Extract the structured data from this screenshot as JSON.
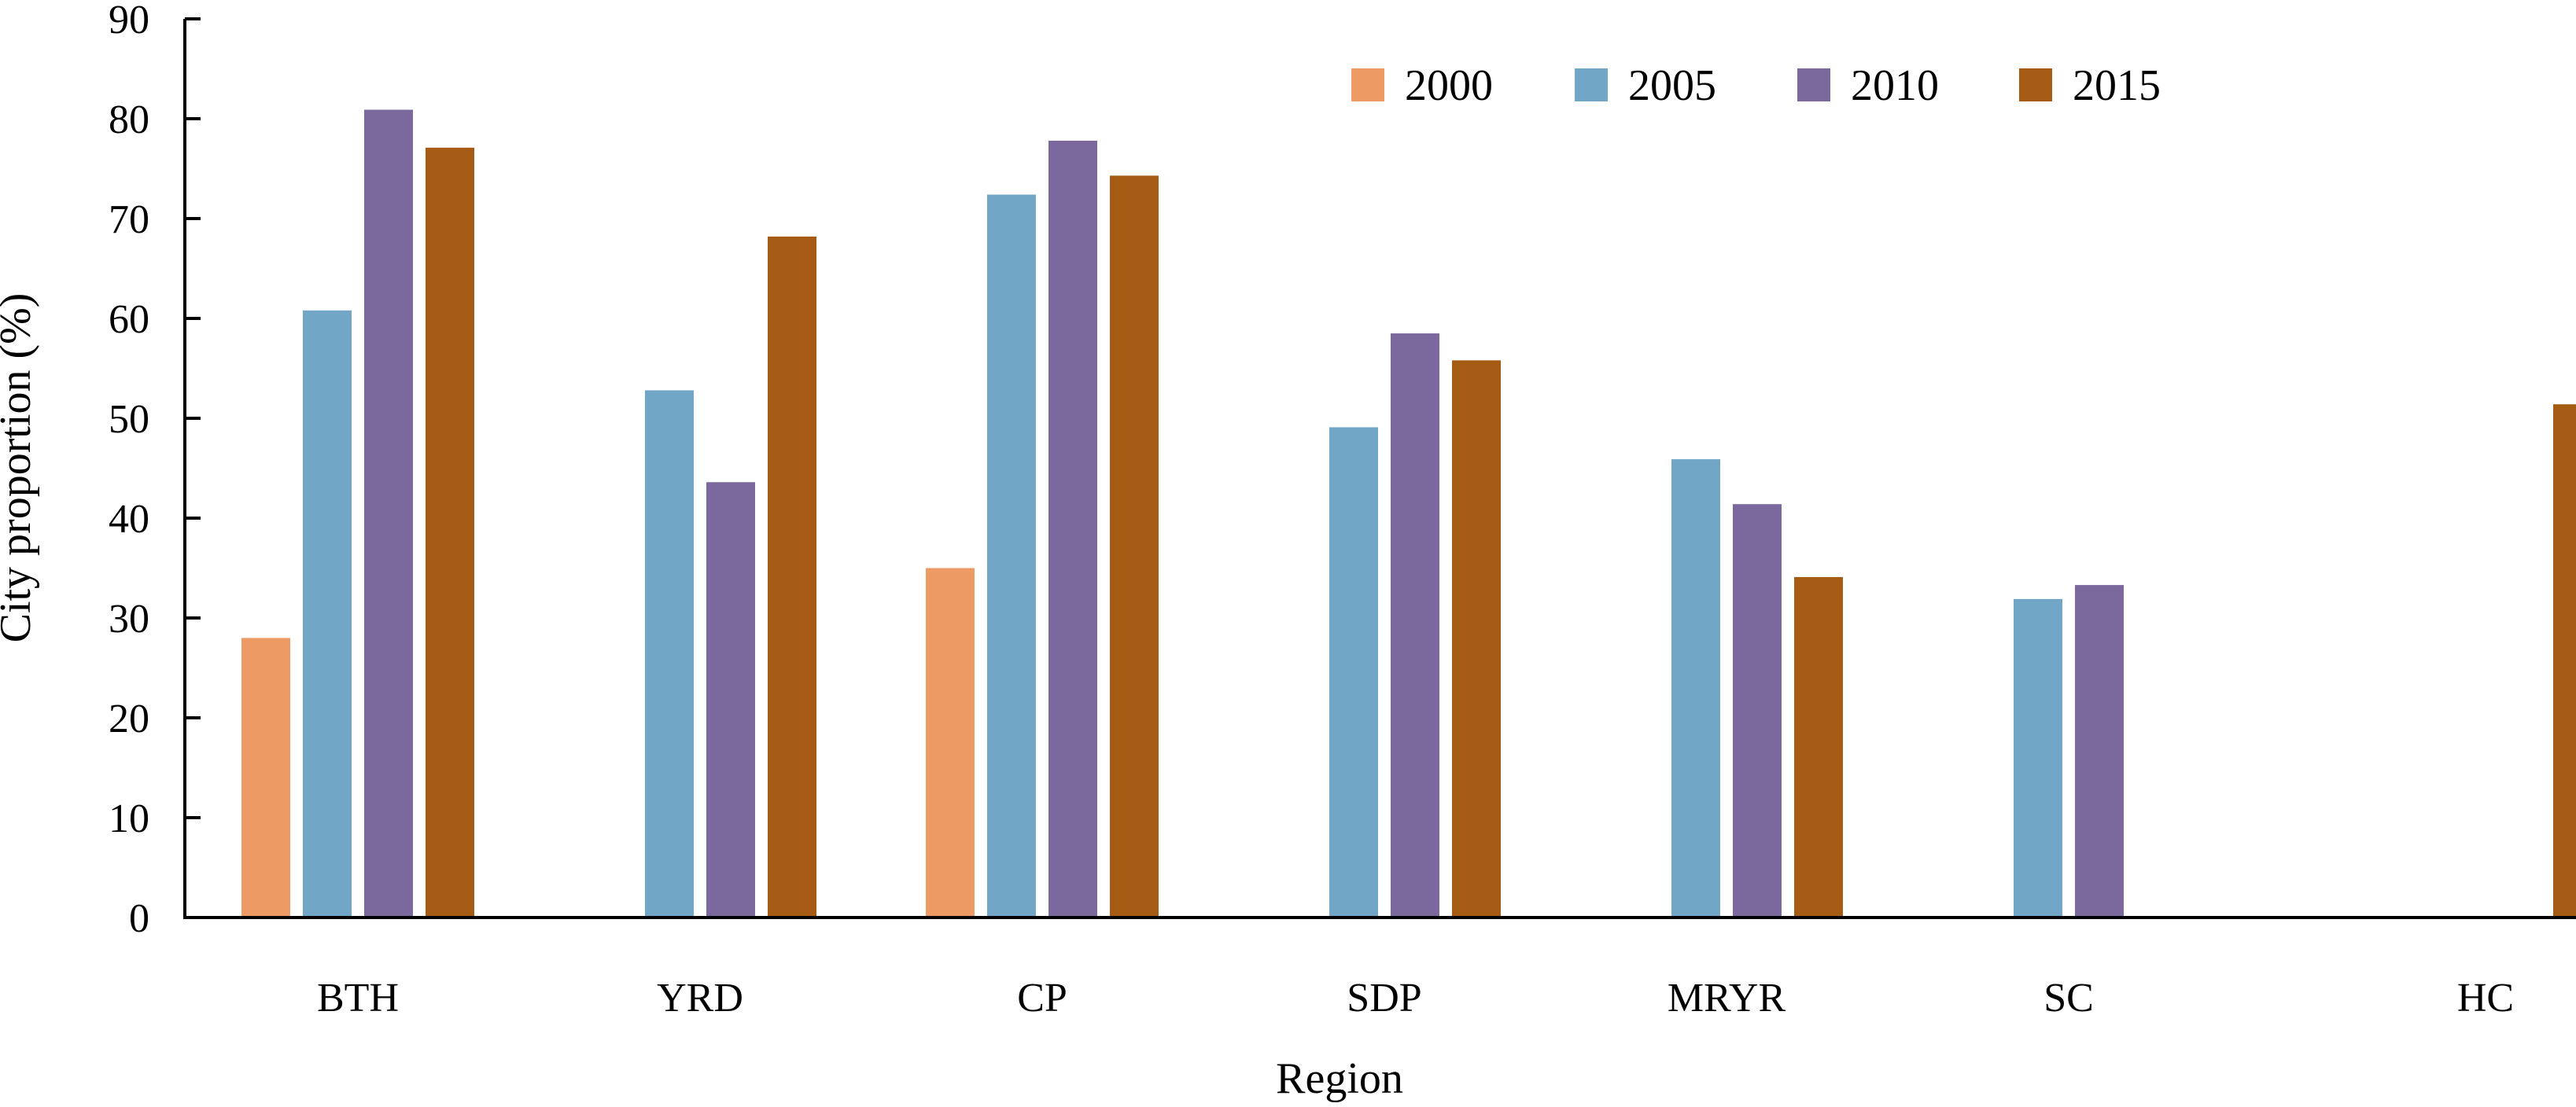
{
  "chart_data": {
    "type": "bar",
    "xlabel": "Region",
    "ylabel": "City proportion (%)",
    "ylim": [
      0,
      90
    ],
    "yticks": [
      0,
      10,
      20,
      30,
      40,
      50,
      60,
      70,
      80,
      90
    ],
    "categories": [
      "BTH",
      "YRD",
      "CP",
      "SDP",
      "MRYR",
      "SC",
      "HC"
    ],
    "series": [
      {
        "name": "2000",
        "color": "#EE9A65",
        "values": [
          28.0,
          null,
          35.0,
          null,
          null,
          null,
          null
        ]
      },
      {
        "name": "2005",
        "color": "#72A6C6",
        "values": [
          60.8,
          52.8,
          72.4,
          49.1,
          45.9,
          31.9,
          null
        ]
      },
      {
        "name": "2010",
        "color": "#7B689C",
        "values": [
          80.9,
          43.6,
          77.8,
          58.5,
          41.4,
          33.3,
          null
        ]
      },
      {
        "name": "2015",
        "color": "#A55B13",
        "values": [
          77.1,
          68.2,
          74.3,
          55.8,
          34.1,
          null,
          51.4
        ]
      }
    ],
    "legend_position": "top-right",
    "grid": false
  }
}
